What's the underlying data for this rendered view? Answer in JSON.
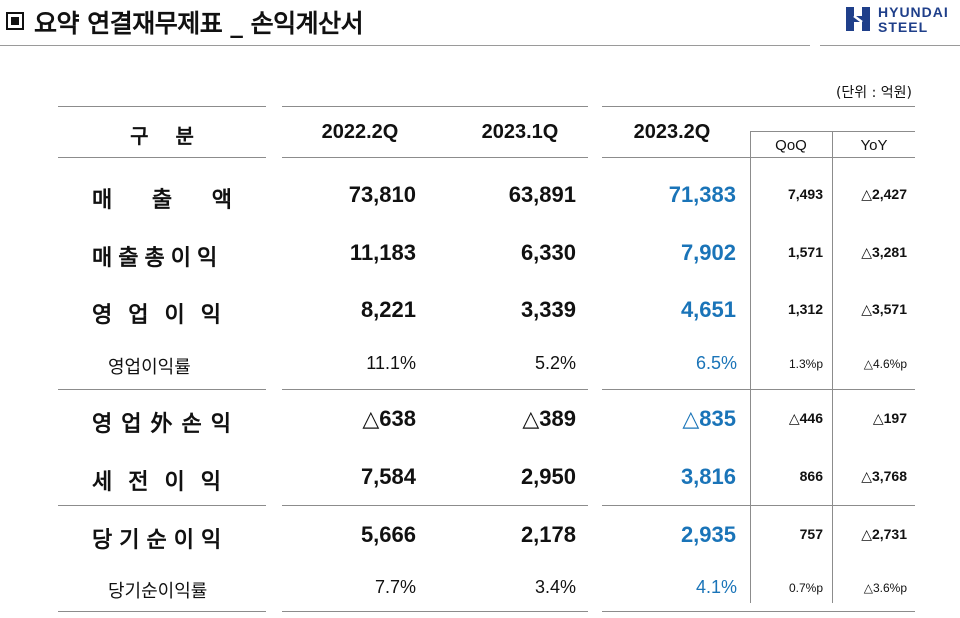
{
  "title": "요약 연결재무제표 _ 손익계산서",
  "logo": {
    "line1": "HYUNDAI",
    "line2": "STEEL"
  },
  "unit": "(단위 : 억원)",
  "headers": {
    "category": "구 분",
    "p1": "2022.2Q",
    "p2": "2023.1Q",
    "p3": "2023.2Q",
    "qoq": "QoQ",
    "yoy": "YoY"
  },
  "rows": [
    {
      "label": "매 출 액",
      "v1": "73,810",
      "v2": "63,891",
      "v3": "71,383",
      "qoq": "7,493",
      "yoy": "△2,427"
    },
    {
      "label": "매출총이익",
      "v1": "11,183",
      "v2": "6,330",
      "v3": "7,902",
      "qoq": "1,571",
      "yoy": "△3,281"
    },
    {
      "label": "영업이익",
      "v1": "8,221",
      "v2": "3,339",
      "v3": "4,651",
      "qoq": "1,312",
      "yoy": "△3,571"
    },
    {
      "label": "영업이익률",
      "v1": "11.1%",
      "v2": "5.2%",
      "v3": "6.5%",
      "qoq": "1.3%p",
      "yoy": "△4.6%p"
    },
    {
      "label": "영업外손익",
      "v1": "△638",
      "v2": "△389",
      "v3": "△835",
      "qoq": "△446",
      "yoy": "△197"
    },
    {
      "label": "세전이익",
      "v1": "7,584",
      "v2": "2,950",
      "v3": "3,816",
      "qoq": "866",
      "yoy": "△3,768"
    },
    {
      "label": "당기순이익",
      "v1": "5,666",
      "v2": "2,178",
      "v3": "2,935",
      "qoq": "757",
      "yoy": "△2,731"
    },
    {
      "label": "당기순이익률",
      "v1": "7.7%",
      "v2": "3.4%",
      "v3": "4.1%",
      "qoq": "0.7%p",
      "yoy": "△3.6%p"
    }
  ]
}
